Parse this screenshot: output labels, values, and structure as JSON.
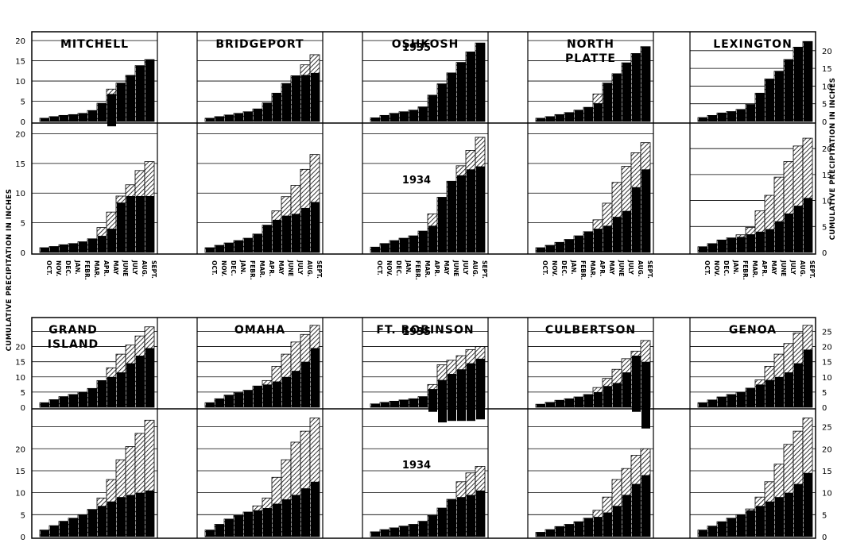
{
  "side_label": "CUMULATIVE PRECIPITATION IN INCHES",
  "months": [
    "OCT.",
    "NOV.",
    "DEC.",
    "JAN.",
    "FEBR.",
    "MAR.",
    "APR.",
    "MAY",
    "JUNE",
    "JULY",
    "AUG.",
    "SEPT."
  ],
  "year_labels": {
    "y1935": "1935",
    "y1934": "1934"
  },
  "colors": {
    "ink": "#000000",
    "paper": "#ffffff",
    "hatch": "#000000"
  },
  "chart_data": {
    "type": "bar",
    "description_units": "inches",
    "legend_style": "black fill = normal cumulative precipitation; hatched = actual",
    "categories": [
      "OCT.",
      "NOV.",
      "DEC.",
      "JAN.",
      "FEBR.",
      "MAR.",
      "APR.",
      "MAY",
      "JUNE",
      "JULY",
      "AUG.",
      "SEPT."
    ],
    "stations": [
      {
        "name": "MITCHELL",
        "row": "top",
        "col": 0,
        "y1935": {
          "actual": [
            0.8,
            1.2,
            1.5,
            1.7,
            2.0,
            2.7,
            4.5,
            6.8,
            9.5,
            11.4,
            13.8,
            15.3
          ],
          "normal": [
            0.8,
            1.2,
            1.5,
            1.7,
            2.0,
            2.7,
            4.5,
            8.0,
            9.5,
            11.4,
            13.8,
            15.3
          ]
        },
        "y1934": {
          "actual": [
            0.8,
            1.0,
            1.3,
            1.5,
            1.8,
            2.3,
            4.2,
            6.8,
            9.5,
            11.4,
            13.8,
            15.3
          ],
          "normal": [
            0.8,
            1.0,
            1.3,
            1.5,
            1.8,
            2.3,
            2.8,
            4.0,
            8.4,
            9.5,
            9.5,
            9.5
          ]
        }
      },
      {
        "name": "BRIDGEPORT",
        "row": "top",
        "col": 1,
        "y1935": {
          "actual": [
            0.8,
            1.2,
            1.6,
            2.0,
            2.4,
            3.1,
            4.6,
            7.0,
            9.4,
            11.3,
            14.0,
            16.5
          ],
          "normal": [
            0.8,
            1.2,
            1.6,
            2.0,
            2.4,
            3.1,
            4.6,
            7.0,
            9.4,
            11.3,
            11.5,
            12.0
          ]
        },
        "y1934": {
          "actual": [
            0.8,
            1.2,
            1.6,
            2.0,
            2.4,
            3.1,
            4.6,
            7.0,
            9.4,
            11.3,
            14.0,
            16.5
          ],
          "normal": [
            0.8,
            1.2,
            1.6,
            2.0,
            2.4,
            3.1,
            4.6,
            5.5,
            6.2,
            6.5,
            7.5,
            8.5
          ]
        }
      },
      {
        "name": "OSHKOSH",
        "row": "top",
        "col": 2,
        "y1935": {
          "actual": [
            0.9,
            1.5,
            2.0,
            2.4,
            2.8,
            3.6,
            6.5,
            9.3,
            12.0,
            14.6,
            17.2,
            19.4
          ],
          "normal": [
            0.9,
            1.5,
            2.0,
            2.4,
            2.8,
            3.6,
            6.5,
            9.3,
            12.0,
            14.6,
            17.2,
            19.4
          ]
        },
        "y1934": {
          "actual": [
            0.9,
            1.5,
            2.0,
            2.4,
            2.8,
            3.6,
            6.5,
            9.3,
            12.0,
            14.6,
            17.2,
            19.4
          ],
          "normal": [
            0.9,
            1.5,
            2.0,
            2.4,
            2.8,
            3.6,
            4.5,
            9.3,
            12.0,
            13.0,
            14.0,
            14.5
          ]
        }
      },
      {
        "name": "NORTH PLATTE",
        "row": "top",
        "col": 3,
        "y1935": {
          "actual": [
            0.8,
            1.2,
            1.7,
            2.2,
            2.8,
            3.5,
            6.8,
            9.5,
            11.8,
            14.5,
            16.8,
            18.5
          ],
          "normal": [
            0.8,
            1.2,
            1.7,
            2.2,
            2.8,
            3.5,
            4.5,
            9.5,
            11.8,
            14.5,
            16.8,
            18.5
          ]
        },
        "y1934": {
          "actual": [
            0.8,
            1.2,
            1.7,
            2.2,
            2.8,
            3.5,
            5.5,
            8.3,
            11.8,
            14.5,
            16.8,
            18.5
          ],
          "normal": [
            0.8,
            1.2,
            1.7,
            2.2,
            2.8,
            3.5,
            4.0,
            4.5,
            6.0,
            7.0,
            11.0,
            14.0
          ]
        }
      },
      {
        "name": "LEXINGTON",
        "row": "top",
        "col": 4,
        "y1935": {
          "actual": [
            1.1,
            1.7,
            2.4,
            2.8,
            3.4,
            4.8,
            8.0,
            12.0,
            14.2,
            17.5,
            21.0,
            22.6
          ],
          "normal": [
            1.1,
            1.7,
            2.4,
            2.8,
            3.4,
            4.8,
            8.0,
            12.0,
            14.2,
            17.5,
            21.0,
            22.6
          ]
        },
        "y1934": {
          "actual": [
            1.1,
            1.7,
            2.4,
            2.8,
            3.4,
            4.8,
            8.0,
            11.0,
            14.5,
            17.5,
            20.5,
            22.0
          ],
          "normal": [
            1.1,
            1.7,
            2.4,
            2.8,
            3.0,
            3.5,
            4.0,
            4.5,
            6.0,
            7.5,
            9.0,
            10.5
          ]
        }
      },
      {
        "name": "GRAND ISLAND",
        "row": "bottom",
        "col": 0,
        "y1935": {
          "actual": [
            1.5,
            2.5,
            3.5,
            4.2,
            5.0,
            6.2,
            8.8,
            13.0,
            17.5,
            20.5,
            23.5,
            26.5
          ],
          "normal": [
            1.5,
            2.5,
            3.5,
            4.2,
            5.0,
            6.2,
            8.8,
            10.0,
            11.5,
            14.5,
            17.0,
            19.5
          ]
        },
        "y1934": {
          "actual": [
            1.5,
            2.5,
            3.5,
            4.2,
            5.0,
            6.2,
            8.8,
            13.0,
            17.5,
            20.5,
            23.5,
            26.5
          ],
          "normal": [
            1.5,
            2.5,
            3.5,
            4.2,
            5.0,
            6.2,
            7.0,
            8.0,
            9.0,
            9.5,
            10.0,
            10.5
          ]
        }
      },
      {
        "name": "OMAHA",
        "row": "bottom",
        "col": 1,
        "y1935": {
          "actual": [
            1.5,
            2.8,
            4.0,
            4.8,
            5.6,
            7.0,
            8.8,
            13.5,
            17.5,
            21.5,
            24.0,
            27.0
          ],
          "normal": [
            1.5,
            2.8,
            4.0,
            4.8,
            5.6,
            7.0,
            7.5,
            8.5,
            10.0,
            12.0,
            15.0,
            19.5
          ]
        },
        "y1934": {
          "actual": [
            1.5,
            2.8,
            4.0,
            4.8,
            5.6,
            7.0,
            8.8,
            13.5,
            17.5,
            21.5,
            24.0,
            27.0
          ],
          "normal": [
            1.5,
            2.8,
            4.0,
            4.8,
            5.6,
            6.0,
            6.5,
            7.5,
            8.5,
            9.5,
            11.0,
            12.5
          ]
        }
      },
      {
        "name": "FT. ROBINSON",
        "row": "bottom",
        "col": 2,
        "y1935": {
          "actual": [
            1.1,
            1.6,
            2.0,
            2.4,
            2.8,
            3.5,
            6.0,
            9.0,
            11.0,
            12.5,
            14.5,
            16.0
          ],
          "normal": [
            1.1,
            1.6,
            2.0,
            2.4,
            2.8,
            3.5,
            7.5,
            14.0,
            15.5,
            17.0,
            19.0,
            20.0
          ]
        },
        "y1934": {
          "actual": [
            1.1,
            1.6,
            2.0,
            2.4,
            2.8,
            3.5,
            4.8,
            6.5,
            8.5,
            12.5,
            14.5,
            16.0
          ],
          "normal": [
            1.1,
            1.6,
            2.0,
            2.4,
            2.8,
            3.5,
            4.8,
            6.5,
            8.5,
            9.0,
            9.5,
            10.5
          ]
        }
      },
      {
        "name": "CULBERTSON",
        "row": "bottom",
        "col": 3,
        "y1935": {
          "actual": [
            1.0,
            1.6,
            2.3,
            2.8,
            3.4,
            4.2,
            6.5,
            9.5,
            12.5,
            16.0,
            17.0,
            15.0
          ],
          "normal": [
            1.0,
            1.6,
            2.3,
            2.8,
            3.4,
            4.2,
            5.0,
            7.0,
            8.0,
            11.5,
            18.5,
            22.0
          ]
        },
        "y1934": {
          "actual": [
            1.0,
            1.6,
            2.3,
            2.8,
            3.4,
            4.2,
            6.0,
            9.0,
            13.0,
            15.5,
            18.5,
            20.0
          ],
          "normal": [
            1.0,
            1.6,
            2.3,
            2.8,
            3.4,
            4.2,
            4.5,
            5.5,
            7.0,
            9.5,
            12.0,
            14.0
          ]
        }
      },
      {
        "name": "GENOA",
        "row": "bottom",
        "col": 4,
        "y1935": {
          "actual": [
            1.5,
            2.4,
            3.4,
            4.2,
            5.0,
            6.3,
            9.0,
            13.5,
            17.5,
            21.0,
            24.5,
            27.0
          ],
          "normal": [
            1.5,
            2.4,
            3.4,
            4.2,
            5.0,
            6.3,
            7.5,
            9.0,
            10.0,
            11.5,
            14.5,
            19.0
          ]
        },
        "y1934": {
          "actual": [
            1.5,
            2.4,
            3.4,
            4.2,
            5.0,
            6.3,
            9.0,
            12.5,
            16.5,
            21.0,
            24.0,
            27.0
          ],
          "normal": [
            1.5,
            2.4,
            3.4,
            4.2,
            5.0,
            6.0,
            7.0,
            8.0,
            9.0,
            10.0,
            12.0,
            14.5
          ]
        }
      }
    ],
    "y_axes": {
      "top_left": {
        "ticks": [
          0,
          5,
          10,
          15,
          20
        ],
        "max": 21
      },
      "top_right": {
        "ticks": [
          0,
          5,
          10,
          15,
          20
        ],
        "max": 24
      },
      "bottom_left": {
        "ticks": [
          0,
          5,
          10,
          15,
          20
        ],
        "max": 28
      },
      "bottom_right": {
        "ticks": [
          0,
          5,
          10,
          15,
          20,
          25
        ],
        "max": 28
      }
    }
  }
}
